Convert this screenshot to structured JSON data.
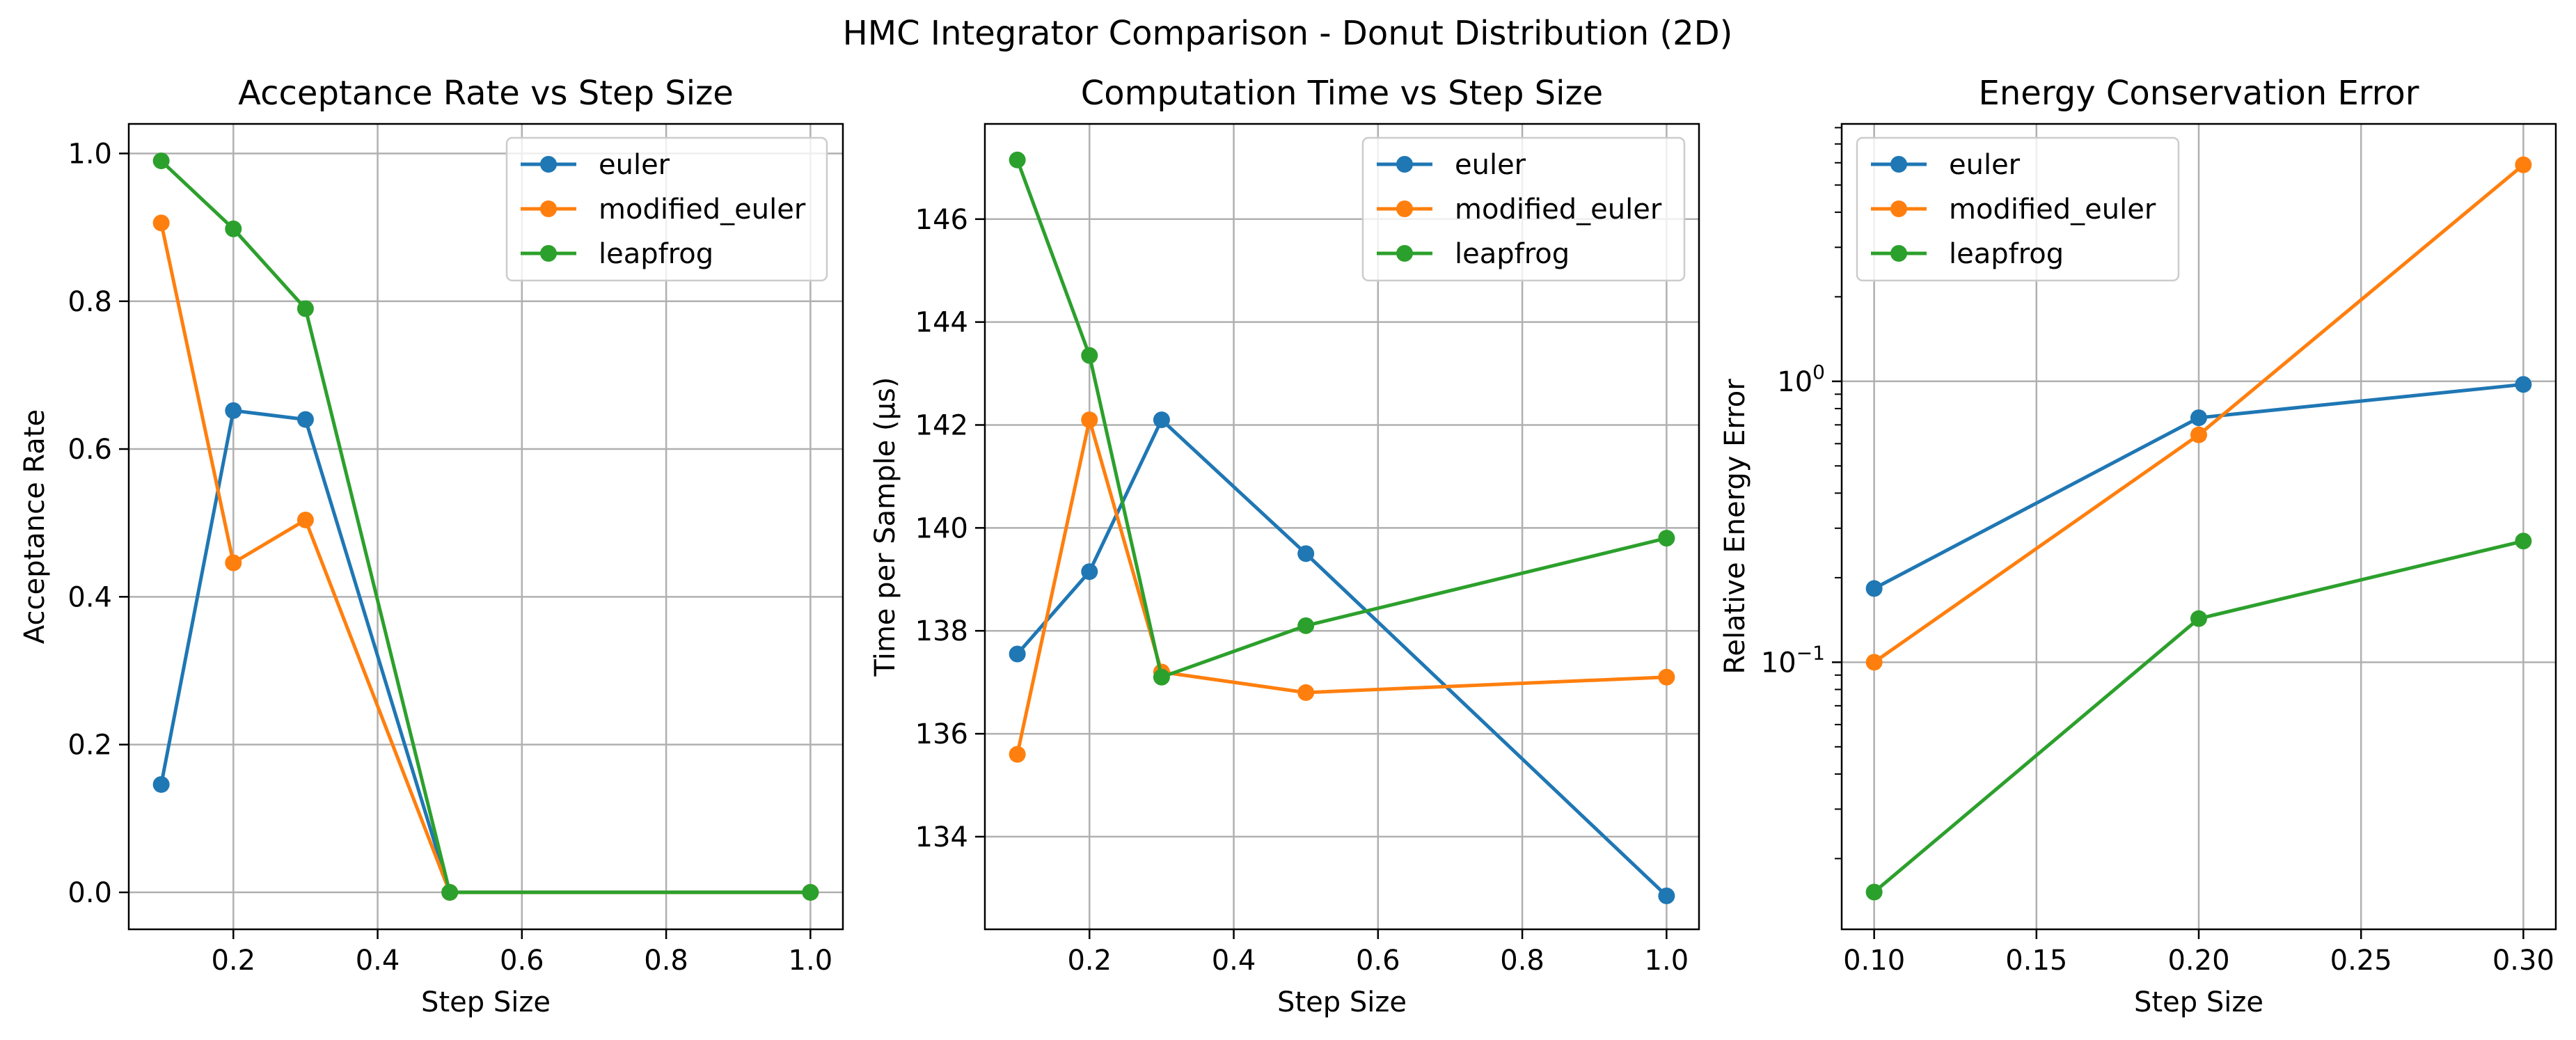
{
  "figure": {
    "title": "HMC Integrator Comparison - Donut Distribution (2D)"
  },
  "colors": {
    "euler": "#1f77b4",
    "modified_euler": "#ff7f0e",
    "leapfrog": "#2ca02c",
    "grid": "#b0b0b0"
  },
  "chart_data": [
    {
      "type": "line",
      "title": "Acceptance Rate vs Step Size",
      "xlabel": "Step Size",
      "ylabel": "Acceptance Rate",
      "xscale": "linear",
      "yscale": "linear",
      "xlim": [
        0.055,
        1.045
      ],
      "ylim": [
        -0.05,
        1.04
      ],
      "xticks": [
        0.2,
        0.4,
        0.6,
        0.8,
        1.0
      ],
      "xtick_labels": [
        "0.2",
        "0.4",
        "0.6",
        "0.8",
        "1.0"
      ],
      "yticks": [
        0.0,
        0.2,
        0.4,
        0.6,
        0.8,
        1.0
      ],
      "ytick_labels": [
        "0.0",
        "0.2",
        "0.4",
        "0.6",
        "0.8",
        "1.0"
      ],
      "grid": true,
      "legend": "upper right",
      "series": [
        {
          "name": "euler",
          "x": [
            0.1,
            0.2,
            0.3,
            0.5,
            1.0
          ],
          "y": [
            0.146,
            0.652,
            0.64,
            0.0,
            0.0
          ]
        },
        {
          "name": "modified_euler",
          "x": [
            0.1,
            0.2,
            0.3,
            0.5,
            1.0
          ],
          "y": [
            0.906,
            0.446,
            0.504,
            0.0,
            0.0
          ]
        },
        {
          "name": "leapfrog",
          "x": [
            0.1,
            0.2,
            0.3,
            0.5,
            1.0
          ],
          "y": [
            0.99,
            0.898,
            0.79,
            0.0,
            0.0
          ]
        }
      ]
    },
    {
      "type": "line",
      "title": "Computation Time vs Step Size",
      "xlabel": "Step Size",
      "ylabel": "Time per Sample (µs)",
      "xscale": "linear",
      "yscale": "linear",
      "xlim": [
        0.055,
        1.045
      ],
      "ylim": [
        132.2,
        147.85
      ],
      "xticks": [
        0.2,
        0.4,
        0.6,
        0.8,
        1.0
      ],
      "xtick_labels": [
        "0.2",
        "0.4",
        "0.6",
        "0.8",
        "1.0"
      ],
      "yticks": [
        134,
        136,
        138,
        140,
        142,
        144,
        146
      ],
      "ytick_labels": [
        "134",
        "136",
        "138",
        "140",
        "142",
        "144",
        "146"
      ],
      "grid": true,
      "legend": "upper right",
      "series": [
        {
          "name": "euler",
          "x": [
            0.1,
            0.2,
            0.3,
            0.5,
            1.0
          ],
          "y": [
            137.55,
            139.15,
            142.1,
            139.5,
            132.85
          ]
        },
        {
          "name": "modified_euler",
          "x": [
            0.1,
            0.2,
            0.3,
            0.5,
            1.0
          ],
          "y": [
            135.6,
            142.1,
            137.2,
            136.8,
            137.1
          ]
        },
        {
          "name": "leapfrog",
          "x": [
            0.1,
            0.2,
            0.3,
            0.5,
            1.0
          ],
          "y": [
            147.15,
            143.35,
            137.1,
            138.1,
            139.8
          ]
        }
      ]
    },
    {
      "type": "line",
      "title": "Energy Conservation Error",
      "xlabel": "Step Size",
      "ylabel": "Relative Energy Error",
      "xscale": "linear",
      "yscale": "log",
      "xlim": [
        0.09,
        0.31
      ],
      "ylim": [
        0.0112,
        8.25
      ],
      "xticks": [
        0.1,
        0.15,
        0.2,
        0.25,
        0.3
      ],
      "xtick_labels": [
        "0.10",
        "0.15",
        "0.20",
        "0.25",
        "0.30"
      ],
      "yticks": [
        0.1,
        1.0
      ],
      "ytick_labels": [
        [
          "10",
          "−1"
        ],
        [
          "10",
          "0"
        ]
      ],
      "grid": true,
      "legend": "upper left",
      "series": [
        {
          "name": "euler",
          "x": [
            0.1,
            0.2,
            0.3
          ],
          "y": [
            0.183,
            0.742,
            0.975
          ]
        },
        {
          "name": "modified_euler",
          "x": [
            0.1,
            0.2,
            0.3
          ],
          "y": [
            0.1,
            0.645,
            5.9
          ]
        },
        {
          "name": "leapfrog",
          "x": [
            0.1,
            0.2,
            0.3
          ],
          "y": [
            0.0152,
            0.143,
            0.27
          ]
        }
      ]
    }
  ]
}
